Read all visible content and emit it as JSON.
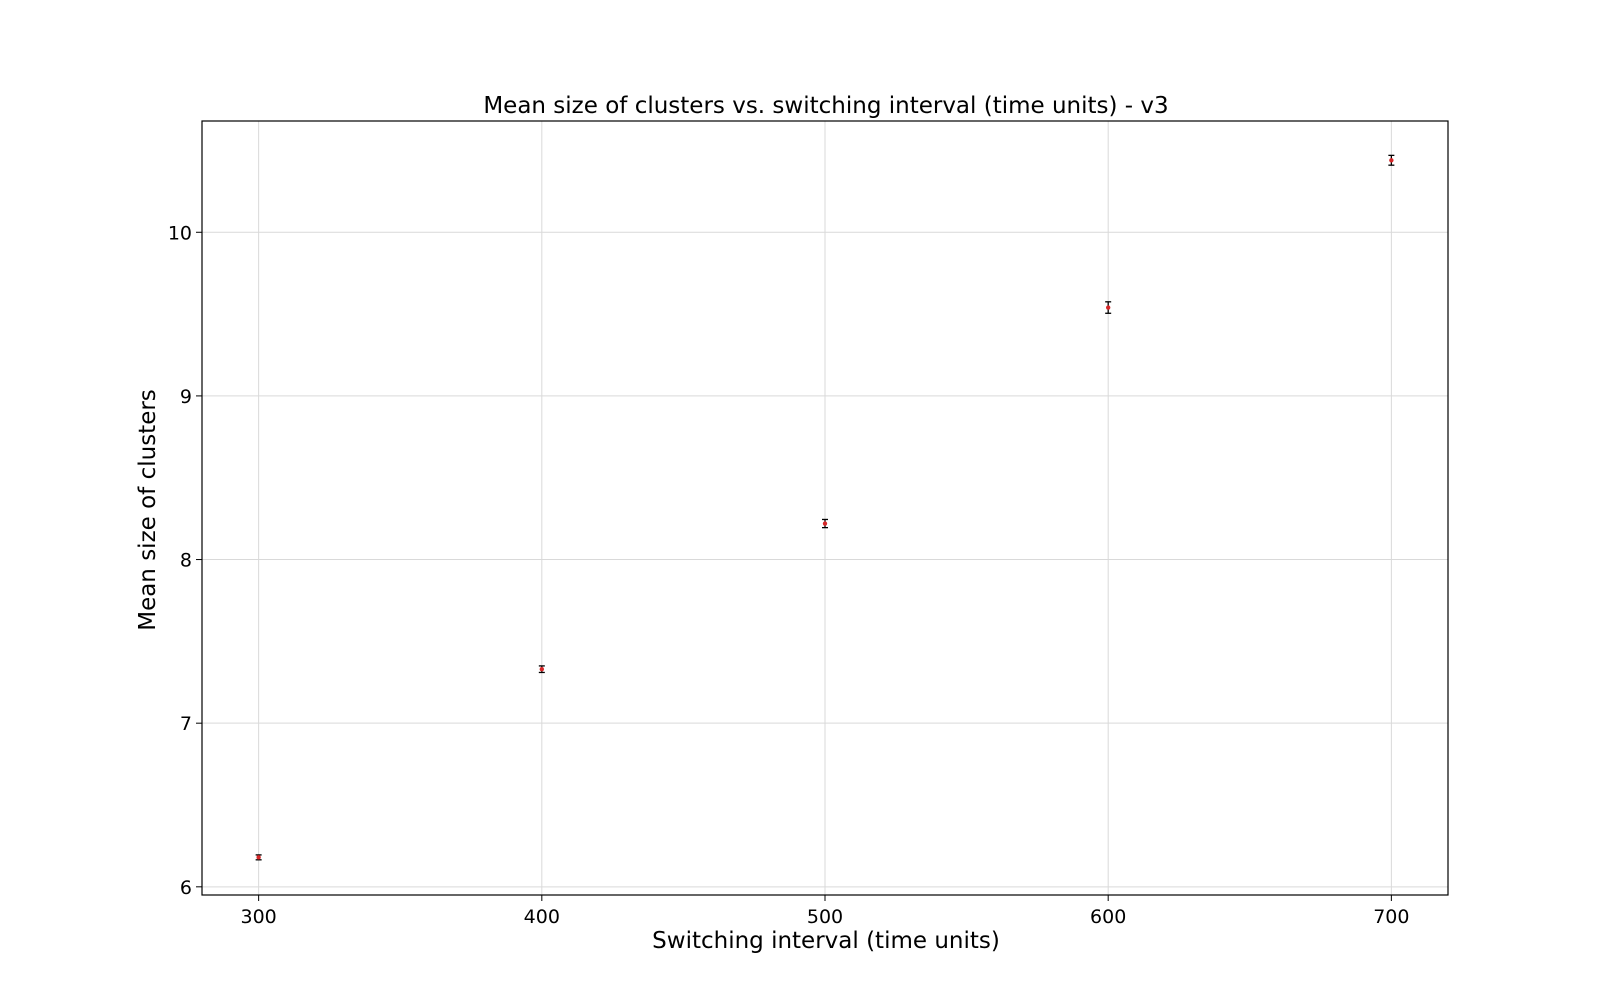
{
  "chart_data": {
    "type": "scatter",
    "title": "Mean size of clusters vs. switching interval (time units) - v3",
    "xlabel": "Switching interval (time units)",
    "ylabel": "Mean size of clusters",
    "xlim": [
      280,
      720
    ],
    "ylim": [
      5.95,
      10.68
    ],
    "xticks": [
      300,
      400,
      500,
      600,
      700
    ],
    "yticks": [
      6,
      7,
      8,
      9,
      10
    ],
    "grid": true,
    "series": [
      {
        "x": [
          300,
          400,
          500,
          600,
          700
        ],
        "y": [
          6.18,
          7.33,
          8.22,
          9.54,
          10.44
        ],
        "yerr": [
          0.015,
          0.02,
          0.025,
          0.035,
          0.03
        ],
        "marker_color": "#d62728",
        "errorbar_color": "#000000"
      }
    ]
  }
}
